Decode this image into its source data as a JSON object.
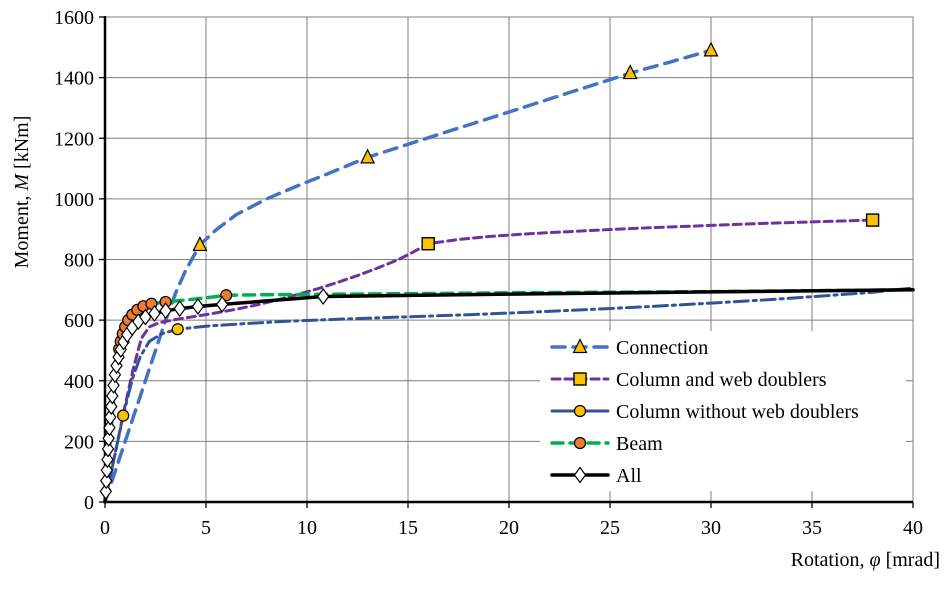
{
  "figure": {
    "background": "#ffffff",
    "text_color": "#000000"
  },
  "chart_data": {
    "type": "line",
    "title": "",
    "xlabel": "Rotation, φ [mrad]",
    "ylabel": "Moment, M [kNm]",
    "xlabel_parts": [
      {
        "t": "Rotation, ",
        "i": false
      },
      {
        "t": "φ",
        "i": true
      },
      {
        "t": " [mrad]",
        "i": false
      }
    ],
    "ylabel_parts": [
      {
        "t": "Moment, ",
        "i": false
      },
      {
        "t": "M",
        "i": true
      },
      {
        "t": " [kNm]",
        "i": false
      }
    ],
    "xlim": [
      0,
      40
    ],
    "ylim": [
      0,
      1600
    ],
    "xticks": [
      0,
      5,
      10,
      15,
      20,
      25,
      30,
      35,
      40
    ],
    "yticks": [
      0,
      200,
      400,
      600,
      800,
      1000,
      1200,
      1400,
      1600
    ],
    "grid": true,
    "grid_color": "#7f7f7f",
    "axis_color": "#000000",
    "legend_position": "inside-lower-right",
    "series": [
      {
        "name": "Connection",
        "slug": "connection",
        "color": "#4472C4",
        "line_style": "dash",
        "dash": "13,8",
        "legend_dash": "13,8",
        "line_width": 3.5,
        "marker": {
          "shape": "triangle",
          "fill": "#FFC000",
          "stroke": "#000000",
          "size": 13
        },
        "points": [
          [
            0,
            0
          ],
          [
            0.7,
            140
          ],
          [
            1.4,
            280
          ],
          [
            2,
            400
          ],
          [
            2.5,
            500
          ],
          [
            3,
            600
          ],
          [
            3.5,
            690
          ],
          [
            4,
            765
          ],
          [
            4.7,
            848
          ],
          [
            5.5,
            898
          ],
          [
            6.5,
            948
          ],
          [
            8,
            1000
          ],
          [
            9.5,
            1042
          ],
          [
            11,
            1082
          ],
          [
            13,
            1137
          ],
          [
            15,
            1180
          ],
          [
            17,
            1223
          ],
          [
            19,
            1265
          ],
          [
            21,
            1308
          ],
          [
            23,
            1351
          ],
          [
            25,
            1393
          ],
          [
            26,
            1415
          ],
          [
            28,
            1452
          ],
          [
            30,
            1490
          ]
        ],
        "marker_points": [
          [
            4.7,
            848
          ],
          [
            13,
            1137
          ],
          [
            26,
            1415
          ],
          [
            30,
            1490
          ]
        ]
      },
      {
        "name": "Column and web doublers",
        "slug": "column-and-web-doublers",
        "color": "#7030A0",
        "line_style": "dash",
        "dash": "8,5",
        "legend_dash": "8,5",
        "line_width": 3,
        "marker": {
          "shape": "square",
          "fill": "#FFC000",
          "stroke": "#000000",
          "size": 12
        },
        "points": [
          [
            0,
            0
          ],
          [
            0.5,
            160
          ],
          [
            1,
            320
          ],
          [
            1.4,
            440
          ],
          [
            1.8,
            540
          ],
          [
            2.2,
            578
          ],
          [
            2.7,
            592
          ],
          [
            3.5,
            602
          ],
          [
            4.5,
            613
          ],
          [
            5.5,
            624
          ],
          [
            6.5,
            636
          ],
          [
            7.5,
            650
          ],
          [
            8.5,
            666
          ],
          [
            9.5,
            684
          ],
          [
            10.5,
            703
          ],
          [
            11.5,
            724
          ],
          [
            12.5,
            747
          ],
          [
            13.5,
            772
          ],
          [
            14.5,
            799
          ],
          [
            15.3,
            826
          ],
          [
            16,
            852
          ],
          [
            17.5,
            866
          ],
          [
            19,
            876
          ],
          [
            21,
            885
          ],
          [
            23,
            892
          ],
          [
            25,
            899
          ],
          [
            27,
            905
          ],
          [
            29,
            910
          ],
          [
            31,
            915
          ],
          [
            33,
            920
          ],
          [
            35,
            924
          ],
          [
            36.5,
            927
          ],
          [
            38,
            930
          ]
        ],
        "marker_points": [
          [
            16,
            852
          ],
          [
            38,
            930
          ]
        ]
      },
      {
        "name": "Column without web doublers",
        "slug": "column-without-web-doublers",
        "color": "#2F5597",
        "line_style": "long-dash-dot",
        "dash": "14,5,3,5",
        "legend_dash": "",
        "line_width": 3,
        "marker": {
          "shape": "circle",
          "fill": "#FFC000",
          "stroke": "#000000",
          "size": 11
        },
        "points": [
          [
            0,
            0
          ],
          [
            0.45,
            143
          ],
          [
            0.9,
            285
          ],
          [
            1.35,
            405
          ],
          [
            1.75,
            480
          ],
          [
            2.2,
            530
          ],
          [
            2.8,
            555
          ],
          [
            3.6,
            570
          ],
          [
            5,
            580
          ],
          [
            7,
            589
          ],
          [
            9,
            596
          ],
          [
            12,
            604
          ],
          [
            15,
            611
          ],
          [
            18,
            618
          ],
          [
            21,
            626
          ],
          [
            24,
            635
          ],
          [
            27,
            645
          ],
          [
            30,
            656
          ],
          [
            33,
            668
          ],
          [
            36,
            682
          ],
          [
            38,
            692
          ],
          [
            40,
            706
          ]
        ],
        "marker_points": [
          [
            0.9,
            285
          ],
          [
            3.6,
            570
          ]
        ]
      },
      {
        "name": "Beam",
        "slug": "beam",
        "color": "#00B050",
        "line_style": "dash",
        "dash": "11,7",
        "legend_dash": "11,7",
        "line_width": 3.5,
        "marker": {
          "shape": "circle",
          "fill": "#ED7D31",
          "stroke": "#000000",
          "size": 11
        },
        "points": [
          [
            0,
            0
          ],
          [
            0.3,
            240
          ],
          [
            0.55,
            430
          ],
          [
            0.7,
            505
          ],
          [
            0.78,
            530
          ],
          [
            0.88,
            555
          ],
          [
            1.0,
            578
          ],
          [
            1.15,
            600
          ],
          [
            1.35,
            618
          ],
          [
            1.6,
            634
          ],
          [
            1.9,
            646
          ],
          [
            2.3,
            654
          ],
          [
            3.0,
            660
          ],
          [
            3.8,
            665
          ],
          [
            4.8,
            672
          ],
          [
            6,
            682
          ],
          [
            8,
            684
          ],
          [
            12,
            686
          ],
          [
            16,
            688
          ],
          [
            20,
            690
          ],
          [
            25,
            692
          ],
          [
            30,
            694
          ],
          [
            35,
            697
          ],
          [
            40,
            700
          ]
        ],
        "marker_points": [
          [
            0.7,
            505
          ],
          [
            0.78,
            530
          ],
          [
            0.88,
            555
          ],
          [
            1.0,
            578
          ],
          [
            1.15,
            600
          ],
          [
            1.35,
            618
          ],
          [
            1.6,
            634
          ],
          [
            1.9,
            646
          ],
          [
            2.3,
            654
          ],
          [
            3.0,
            660
          ],
          [
            6,
            682
          ]
        ]
      },
      {
        "name": "All",
        "slug": "all",
        "color": "#000000",
        "line_style": "solid",
        "dash": "",
        "legend_dash": "",
        "line_width": 3.5,
        "marker": {
          "shape": "diamond",
          "fill": "#FFFFFF",
          "stroke": "#000000",
          "size": 13
        },
        "points": [
          [
            0,
            0
          ],
          [
            0.04,
            35
          ],
          [
            0.06,
            70
          ],
          [
            0.09,
            105
          ],
          [
            0.12,
            140
          ],
          [
            0.15,
            175
          ],
          [
            0.18,
            210
          ],
          [
            0.22,
            245
          ],
          [
            0.26,
            280
          ],
          [
            0.31,
            315
          ],
          [
            0.36,
            350
          ],
          [
            0.42,
            385
          ],
          [
            0.49,
            420
          ],
          [
            0.57,
            450
          ],
          [
            0.67,
            478
          ],
          [
            0.78,
            503
          ],
          [
            0.92,
            528
          ],
          [
            1.1,
            552
          ],
          [
            1.35,
            575
          ],
          [
            1.65,
            595
          ],
          [
            2.0,
            610
          ],
          [
            2.45,
            622
          ],
          [
            3.0,
            631
          ],
          [
            3.7,
            638
          ],
          [
            4.6,
            645
          ],
          [
            5.8,
            652
          ],
          [
            10.8,
            678
          ],
          [
            20,
            686
          ],
          [
            30,
            693
          ],
          [
            40,
            700
          ]
        ],
        "marker_points": [
          [
            0.04,
            35
          ],
          [
            0.06,
            70
          ],
          [
            0.09,
            105
          ],
          [
            0.12,
            140
          ],
          [
            0.15,
            175
          ],
          [
            0.18,
            210
          ],
          [
            0.22,
            245
          ],
          [
            0.26,
            280
          ],
          [
            0.31,
            315
          ],
          [
            0.36,
            350
          ],
          [
            0.42,
            385
          ],
          [
            0.49,
            420
          ],
          [
            0.57,
            450
          ],
          [
            0.67,
            478
          ],
          [
            0.78,
            503
          ],
          [
            0.92,
            528
          ],
          [
            1.1,
            552
          ],
          [
            1.35,
            575
          ],
          [
            1.65,
            595
          ],
          [
            2.0,
            610
          ],
          [
            2.45,
            622
          ],
          [
            3.0,
            631
          ],
          [
            3.7,
            638
          ],
          [
            4.6,
            645
          ],
          [
            5.8,
            652
          ],
          [
            10.8,
            678
          ]
        ]
      }
    ],
    "legend": {
      "background": "#ffffff",
      "items": [
        "Connection",
        "Column and web doublers",
        "Column without web doublers",
        "Beam",
        "All"
      ]
    }
  }
}
